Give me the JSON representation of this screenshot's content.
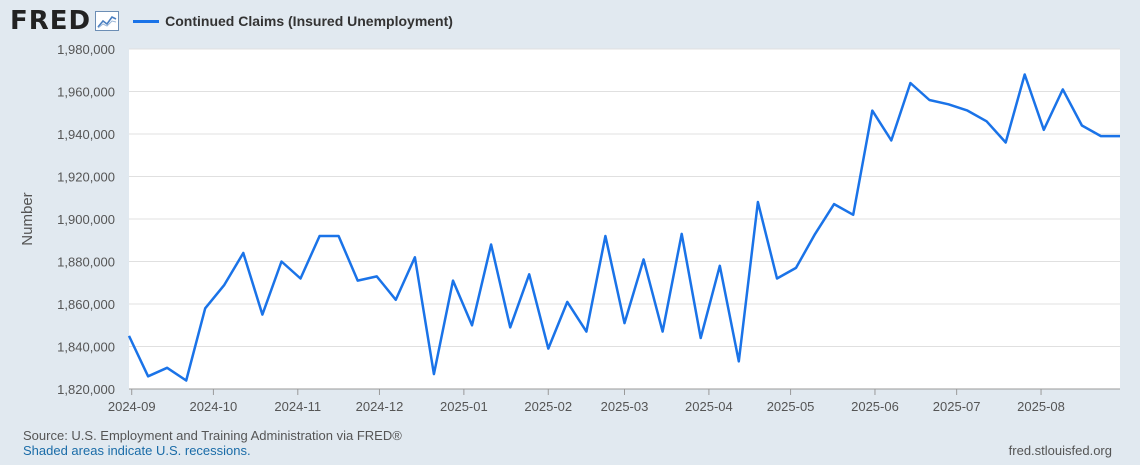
{
  "header": {
    "logo": "FRED",
    "legend_label": "Continued Claims (Insured Unemployment)",
    "series_color": "#1a73e8"
  },
  "footer": {
    "source": "Source: U.S. Employment and Training Administration via FRED®",
    "recession_note": "Shaded areas indicate U.S. recessions.",
    "site": "fred.stlouisfed.org"
  },
  "chart_data": {
    "type": "line",
    "ylabel": "Number",
    "ylim": [
      1820000,
      1980000
    ],
    "yticks": [
      1820000,
      1840000,
      1860000,
      1880000,
      1900000,
      1920000,
      1940000,
      1960000,
      1980000
    ],
    "ytick_labels": [
      "1,820,000",
      "1,840,000",
      "1,860,000",
      "1,880,000",
      "1,900,000",
      "1,920,000",
      "1,940,000",
      "1,960,000",
      "1,980,000"
    ],
    "xlim": [
      "2024-08-31",
      "2025-08-30"
    ],
    "xticks": [
      "2024-09-01",
      "2024-10-01",
      "2024-11-01",
      "2024-12-01",
      "2025-01-01",
      "2025-02-01",
      "2025-03-01",
      "2025-04-01",
      "2025-05-01",
      "2025-06-01",
      "2025-07-01",
      "2025-08-01"
    ],
    "xtick_labels": [
      "2024-09",
      "2024-10",
      "2024-11",
      "2024-12",
      "2025-01",
      "2025-02",
      "2025-03",
      "2025-04",
      "2025-05",
      "2025-06",
      "2025-07",
      "2025-08"
    ],
    "grid": true,
    "series": [
      {
        "name": "Continued Claims (Insured Unemployment)",
        "color": "#1a73e8",
        "points": [
          [
            "2024-08-31",
            1845000
          ],
          [
            "2024-09-07",
            1826000
          ],
          [
            "2024-09-14",
            1830000
          ],
          [
            "2024-09-21",
            1824000
          ],
          [
            "2024-09-28",
            1858000
          ],
          [
            "2024-10-05",
            1869000
          ],
          [
            "2024-10-12",
            1884000
          ],
          [
            "2024-10-19",
            1855000
          ],
          [
            "2024-10-26",
            1880000
          ],
          [
            "2024-11-02",
            1872000
          ],
          [
            "2024-11-09",
            1892000
          ],
          [
            "2024-11-16",
            1892000
          ],
          [
            "2024-11-23",
            1871000
          ],
          [
            "2024-11-30",
            1873000
          ],
          [
            "2024-12-07",
            1862000
          ],
          [
            "2024-12-14",
            1882000
          ],
          [
            "2024-12-21",
            1827000
          ],
          [
            "2024-12-28",
            1871000
          ],
          [
            "2025-01-04",
            1850000
          ],
          [
            "2025-01-11",
            1888000
          ],
          [
            "2025-01-18",
            1849000
          ],
          [
            "2025-01-25",
            1874000
          ],
          [
            "2025-02-01",
            1839000
          ],
          [
            "2025-02-08",
            1861000
          ],
          [
            "2025-02-15",
            1847000
          ],
          [
            "2025-02-22",
            1892000
          ],
          [
            "2025-03-01",
            1851000
          ],
          [
            "2025-03-08",
            1881000
          ],
          [
            "2025-03-15",
            1847000
          ],
          [
            "2025-03-22",
            1893000
          ],
          [
            "2025-03-29",
            1844000
          ],
          [
            "2025-04-05",
            1878000
          ],
          [
            "2025-04-12",
            1833000
          ],
          [
            "2025-04-19",
            1908000
          ],
          [
            "2025-04-26",
            1872000
          ],
          [
            "2025-05-03",
            1877000
          ],
          [
            "2025-05-10",
            1893000
          ],
          [
            "2025-05-17",
            1907000
          ],
          [
            "2025-05-24",
            1902000
          ],
          [
            "2025-05-31",
            1951000
          ],
          [
            "2025-06-07",
            1937000
          ],
          [
            "2025-06-14",
            1964000
          ],
          [
            "2025-06-21",
            1956000
          ],
          [
            "2025-06-28",
            1954000
          ],
          [
            "2025-07-05",
            1951000
          ],
          [
            "2025-07-12",
            1946000
          ],
          [
            "2025-07-19",
            1936000
          ],
          [
            "2025-07-26",
            1968000
          ],
          [
            "2025-08-02",
            1942000
          ],
          [
            "2025-08-09",
            1961000
          ],
          [
            "2025-08-16",
            1944000
          ],
          [
            "2025-08-23",
            1939000
          ],
          [
            "2025-08-30",
            1939000
          ]
        ]
      }
    ]
  }
}
